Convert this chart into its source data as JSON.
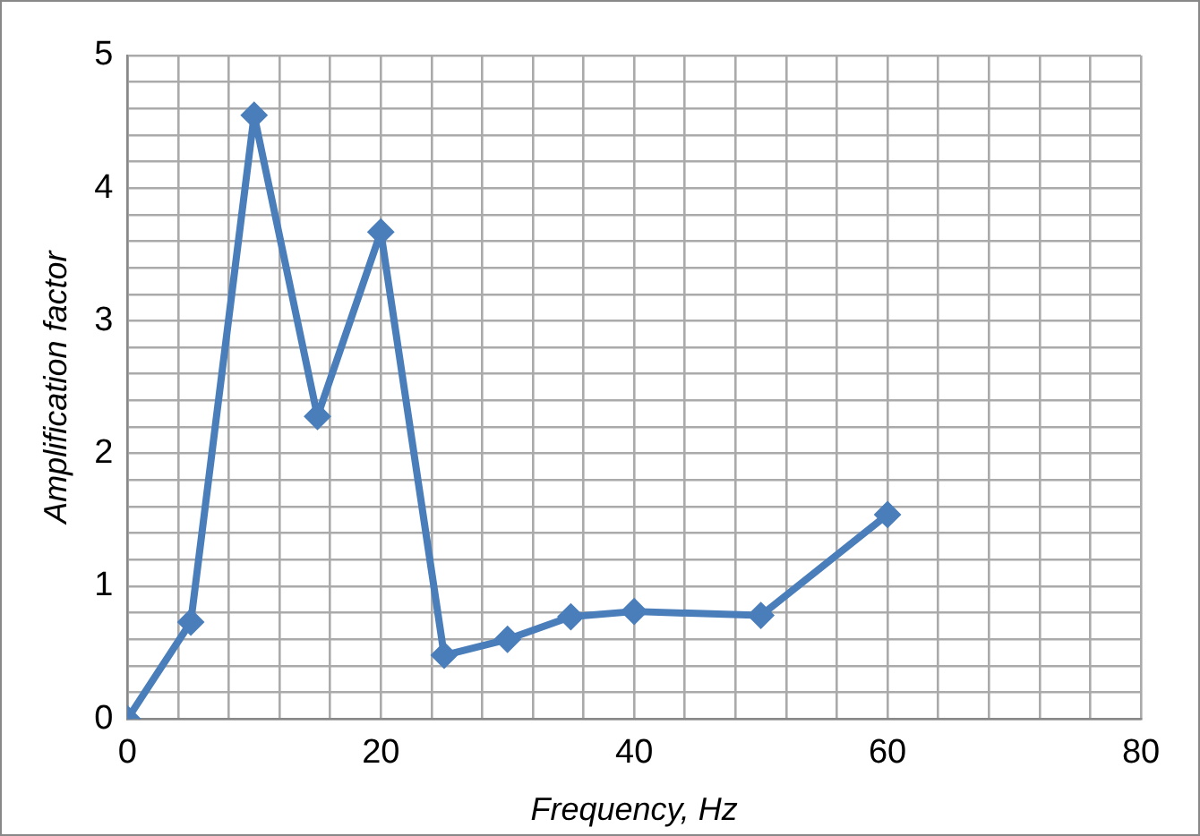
{
  "chart_data": {
    "type": "line",
    "xlabel": "Frequency, Hz",
    "ylabel": "Amplification factor",
    "x": [
      0,
      5,
      10,
      15,
      20,
      25,
      30,
      35,
      40,
      50,
      60
    ],
    "series": [
      {
        "color": "#4a7ebb",
        "values": [
          0,
          0.73,
          4.55,
          2.28,
          3.67,
          0.48,
          0.6,
          0.77,
          0.81,
          0.78,
          1.54
        ]
      }
    ],
    "xlim": [
      0,
      80
    ],
    "ylim": [
      0,
      5
    ],
    "xticks": [
      0,
      {
        "value": 4,
        "label": null
      },
      {
        "value": 8,
        "label": null
      },
      {
        "value": 12,
        "label": null
      },
      {
        "value": 16,
        "label": null
      },
      20,
      {
        "value": 24,
        "label": null
      },
      {
        "value": 28,
        "label": null
      },
      {
        "value": 32,
        "label": null
      },
      {
        "value": 36,
        "label": null
      },
      40,
      {
        "value": 44,
        "label": null
      },
      {
        "value": 48,
        "label": null
      },
      {
        "value": 52,
        "label": null
      },
      {
        "value": 56,
        "label": null
      },
      60,
      {
        "value": 64,
        "label": null
      },
      {
        "value": 68,
        "label": null
      },
      {
        "value": 72,
        "label": null
      },
      {
        "value": 76,
        "label": null
      },
      80
    ],
    "yticks": [
      0,
      {
        "value": 0.2,
        "label": null
      },
      {
        "value": 0.4,
        "label": null
      },
      {
        "value": 0.6,
        "label": null
      },
      {
        "value": 0.8,
        "label": null
      },
      1,
      {
        "value": 1.2,
        "label": null
      },
      {
        "value": 1.4,
        "label": null
      },
      {
        "value": 1.6,
        "label": null
      },
      {
        "value": 1.8,
        "label": null
      },
      2,
      {
        "value": 2.2,
        "label": null
      },
      {
        "value": 2.4,
        "label": null
      },
      {
        "value": 2.6,
        "label": null
      },
      {
        "value": 2.8,
        "label": null
      },
      3,
      {
        "value": 3.2,
        "label": null
      },
      {
        "value": 3.4,
        "label": null
      },
      {
        "value": 3.6,
        "label": null
      },
      {
        "value": 3.8,
        "label": null
      },
      4,
      {
        "value": 4.2,
        "label": null
      },
      {
        "value": 4.4,
        "label": null
      },
      {
        "value": 4.6,
        "label": null
      },
      {
        "value": 4.8,
        "label": null
      },
      5
    ],
    "grid": true,
    "legend": false,
    "marker": "diamond",
    "line_style": "solid"
  }
}
